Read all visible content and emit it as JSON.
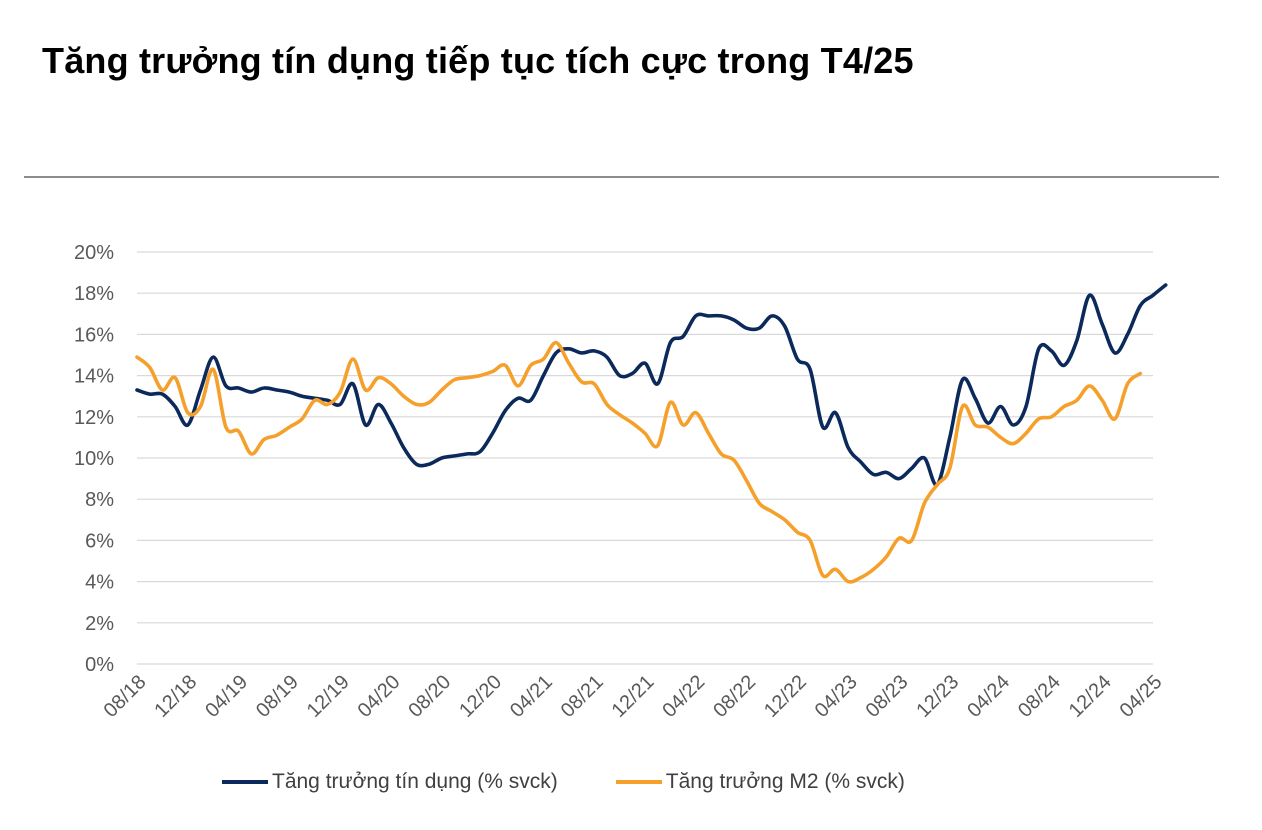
{
  "title": "Tăng trưởng tín dụng tiếp tục tích cực trong T4/25",
  "colors": {
    "credit": "#0b2a5b",
    "m2": "#f6a02c",
    "grid": "#d9d9d9",
    "axis_text": "#595959"
  },
  "chart_data": {
    "type": "line",
    "title": "Tăng trưởng tín dụng tiếp tục tích cực trong T4/25",
    "xlabel": "",
    "ylabel": "",
    "ylim": [
      0,
      20
    ],
    "y_ticks": [
      "0%",
      "2%",
      "4%",
      "6%",
      "8%",
      "10%",
      "12%",
      "14%",
      "16%",
      "18%",
      "20%"
    ],
    "x_ticks": [
      "08/18",
      "12/18",
      "04/19",
      "08/19",
      "12/19",
      "04/20",
      "08/20",
      "12/20",
      "04/21",
      "08/21",
      "12/21",
      "04/22",
      "08/22",
      "12/22",
      "04/23",
      "08/23",
      "12/23",
      "04/24",
      "08/24",
      "12/24",
      "04/25"
    ],
    "x_range": [
      "08/18",
      "04/25"
    ],
    "grid": true,
    "legend_position": "bottom",
    "series": [
      {
        "name": "Tăng trưởng tín dụng (% svck)",
        "color": "#0b2a5b",
        "points": [
          [
            0,
            13.3
          ],
          [
            1,
            13.1
          ],
          [
            2,
            13.1
          ],
          [
            3,
            12.5
          ],
          [
            4,
            11.6
          ],
          [
            5,
            13.3
          ],
          [
            6,
            14.9
          ],
          [
            7,
            13.5
          ],
          [
            8,
            13.4
          ],
          [
            9,
            13.2
          ],
          [
            10,
            13.4
          ],
          [
            11,
            13.3
          ],
          [
            12,
            13.2
          ],
          [
            13,
            13.0
          ],
          [
            14,
            12.9
          ],
          [
            15,
            12.8
          ],
          [
            16,
            12.6
          ],
          [
            17,
            13.6
          ],
          [
            18,
            11.6
          ],
          [
            19,
            12.6
          ],
          [
            20,
            11.7
          ],
          [
            21,
            10.5
          ],
          [
            22,
            9.7
          ],
          [
            23,
            9.7
          ],
          [
            24,
            10.0
          ],
          [
            25,
            10.1
          ],
          [
            26,
            10.2
          ],
          [
            27,
            10.3
          ],
          [
            28,
            11.2
          ],
          [
            29,
            12.3
          ],
          [
            30,
            12.9
          ],
          [
            31,
            12.8
          ],
          [
            32,
            14.0
          ],
          [
            33,
            15.1
          ],
          [
            34,
            15.3
          ],
          [
            35,
            15.1
          ],
          [
            36,
            15.2
          ],
          [
            37,
            14.9
          ],
          [
            38,
            14.0
          ],
          [
            39,
            14.1
          ],
          [
            40,
            14.6
          ],
          [
            41,
            13.6
          ],
          [
            42,
            15.6
          ],
          [
            43,
            15.9
          ],
          [
            44,
            16.9
          ],
          [
            45,
            16.9
          ],
          [
            46,
            16.9
          ],
          [
            47,
            16.7
          ],
          [
            48,
            16.3
          ],
          [
            49,
            16.3
          ],
          [
            50,
            16.9
          ],
          [
            51,
            16.4
          ],
          [
            52,
            14.8
          ],
          [
            53,
            14.3
          ],
          [
            54,
            11.5
          ],
          [
            55,
            12.2
          ],
          [
            56,
            10.5
          ],
          [
            57,
            9.8
          ],
          [
            58,
            9.2
          ],
          [
            59,
            9.3
          ],
          [
            60,
            9.0
          ],
          [
            61,
            9.5
          ],
          [
            62,
            10.0
          ],
          [
            63,
            8.7
          ],
          [
            64,
            11.0
          ],
          [
            65,
            13.8
          ],
          [
            66,
            12.9
          ],
          [
            67,
            11.7
          ],
          [
            68,
            12.5
          ],
          [
            69,
            11.6
          ],
          [
            70,
            12.5
          ],
          [
            71,
            15.3
          ],
          [
            72,
            15.2
          ],
          [
            73,
            14.5
          ],
          [
            74,
            15.7
          ],
          [
            75,
            17.9
          ],
          [
            76,
            16.5
          ],
          [
            77,
            15.1
          ],
          [
            78,
            16.0
          ],
          [
            79,
            17.4
          ],
          [
            80,
            17.9
          ],
          [
            81,
            18.4
          ]
        ]
      },
      {
        "name": "Tăng trưởng M2 (% svck)",
        "color": "#f6a02c",
        "points": [
          [
            0,
            14.9
          ],
          [
            1,
            14.4
          ],
          [
            2,
            13.3
          ],
          [
            3,
            13.9
          ],
          [
            4,
            12.2
          ],
          [
            5,
            12.5
          ],
          [
            6,
            14.3
          ],
          [
            7,
            11.5
          ],
          [
            8,
            11.3
          ],
          [
            9,
            10.2
          ],
          [
            10,
            10.9
          ],
          [
            11,
            11.1
          ],
          [
            12,
            11.5
          ],
          [
            13,
            11.9
          ],
          [
            14,
            12.8
          ],
          [
            15,
            12.6
          ],
          [
            16,
            13.2
          ],
          [
            17,
            14.8
          ],
          [
            18,
            13.3
          ],
          [
            19,
            13.9
          ],
          [
            20,
            13.6
          ],
          [
            21,
            13.0
          ],
          [
            22,
            12.6
          ],
          [
            23,
            12.7
          ],
          [
            24,
            13.3
          ],
          [
            25,
            13.8
          ],
          [
            26,
            13.9
          ],
          [
            27,
            14.0
          ],
          [
            28,
            14.2
          ],
          [
            29,
            14.5
          ],
          [
            30,
            13.5
          ],
          [
            31,
            14.5
          ],
          [
            32,
            14.8
          ],
          [
            33,
            15.6
          ],
          [
            34,
            14.6
          ],
          [
            35,
            13.7
          ],
          [
            36,
            13.6
          ],
          [
            37,
            12.6
          ],
          [
            38,
            12.1
          ],
          [
            39,
            11.7
          ],
          [
            40,
            11.2
          ],
          [
            41,
            10.6
          ],
          [
            42,
            12.7
          ],
          [
            43,
            11.6
          ],
          [
            44,
            12.2
          ],
          [
            45,
            11.2
          ],
          [
            46,
            10.2
          ],
          [
            47,
            9.9
          ],
          [
            48,
            8.9
          ],
          [
            49,
            7.8
          ],
          [
            50,
            7.4
          ],
          [
            51,
            7.0
          ],
          [
            52,
            6.4
          ],
          [
            53,
            6.0
          ],
          [
            54,
            4.3
          ],
          [
            55,
            4.6
          ],
          [
            56,
            4.0
          ],
          [
            57,
            4.2
          ],
          [
            58,
            4.6
          ],
          [
            59,
            5.2
          ],
          [
            60,
            6.1
          ],
          [
            61,
            6.0
          ],
          [
            62,
            7.8
          ],
          [
            63,
            8.7
          ],
          [
            64,
            9.5
          ],
          [
            65,
            12.5
          ],
          [
            66,
            11.6
          ],
          [
            67,
            11.5
          ],
          [
            68,
            11.0
          ],
          [
            69,
            10.7
          ],
          [
            70,
            11.2
          ],
          [
            71,
            11.9
          ],
          [
            72,
            12.0
          ],
          [
            73,
            12.5
          ],
          [
            74,
            12.8
          ],
          [
            75,
            13.5
          ],
          [
            76,
            12.8
          ],
          [
            77,
            11.9
          ],
          [
            78,
            13.6
          ],
          [
            79,
            14.1
          ]
        ]
      }
    ]
  }
}
